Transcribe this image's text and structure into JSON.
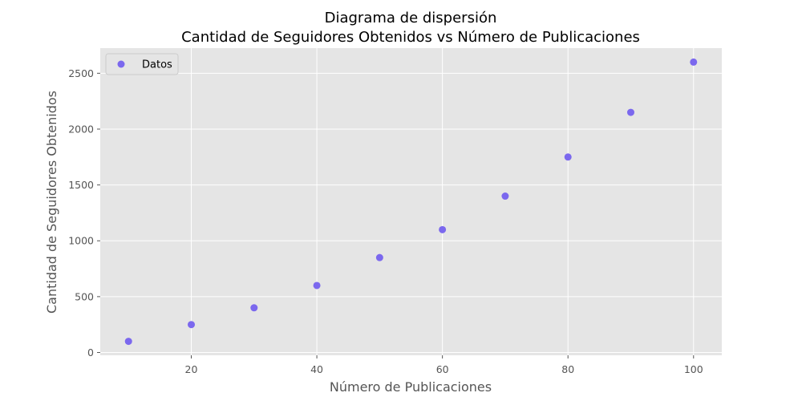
{
  "chart_data": {
    "type": "scatter",
    "title": "Diagrama de dispersión",
    "subtitle": "Cantidad de Seguidores Obtenidos vs Número de Publicaciones",
    "xlabel": "Número de Publicaciones",
    "ylabel": "Cantidad de Seguidores Obtenidos",
    "xlim": [
      5.5,
      104.5
    ],
    "ylim": [
      -25,
      2725
    ],
    "xticks": [
      20,
      40,
      60,
      80,
      100
    ],
    "yticks": [
      0,
      500,
      1000,
      1500,
      2000,
      2500
    ],
    "grid": true,
    "legend_position": "top-left",
    "series": [
      {
        "name": "Datos",
        "color": "#7b68ee",
        "points": [
          {
            "x": 10,
            "y": 100
          },
          {
            "x": 20,
            "y": 250
          },
          {
            "x": 30,
            "y": 400
          },
          {
            "x": 40,
            "y": 600
          },
          {
            "x": 50,
            "y": 850
          },
          {
            "x": 60,
            "y": 1100
          },
          {
            "x": 70,
            "y": 1400
          },
          {
            "x": 80,
            "y": 1750
          },
          {
            "x": 90,
            "y": 2150
          },
          {
            "x": 100,
            "y": 2600
          }
        ]
      }
    ],
    "background_color": "#e5e5e5",
    "grid_color": "#ffffff"
  }
}
